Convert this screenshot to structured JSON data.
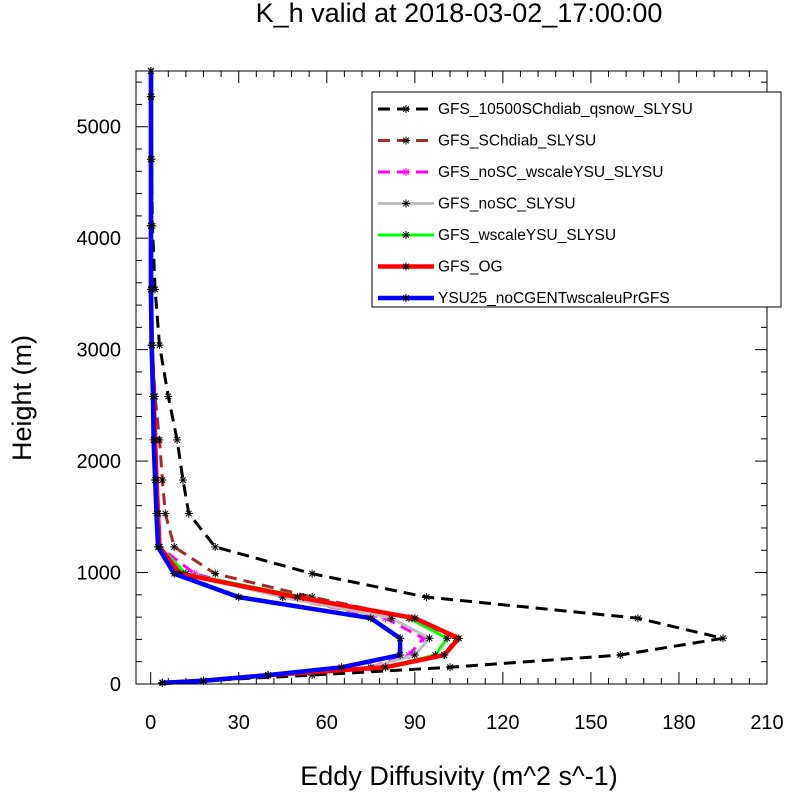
{
  "chart_data": {
    "type": "line",
    "title": "K_h valid at 2018-03-02_17:00:00",
    "xlabel": "Eddy Diffusivity (m^2 s^-1)",
    "ylabel": "Height (m)",
    "xlim": [
      -5,
      210
    ],
    "ylim": [
      0,
      5500
    ],
    "xticks": [
      0,
      30,
      60,
      90,
      120,
      150,
      180,
      210
    ],
    "yticks": [
      0,
      1000,
      2000,
      3000,
      4000,
      5000
    ],
    "xtick_labels": [
      "0",
      "30",
      "60",
      "90",
      "120",
      "150",
      "180",
      "210"
    ],
    "ytick_labels": [
      "0",
      "1000",
      "2000",
      "3000",
      "4000",
      "5000"
    ],
    "legend_position": "top-right",
    "series": [
      {
        "name": "GFS_10500SChdiab_qsnow_SLYSU",
        "color": "#000000",
        "dash": "dash",
        "width": 3,
        "x": [
          4,
          18,
          55,
          102,
          160,
          195,
          166,
          94,
          55,
          22,
          13,
          11,
          9,
          6,
          3,
          1.5,
          0.6,
          0.3,
          0.2,
          0.1
        ],
        "y": [
          10,
          30,
          80,
          150,
          260,
          410,
          590,
          780,
          990,
          1230,
          1530,
          1830,
          2190,
          2580,
          3040,
          3540,
          4110,
          4710,
          5270,
          5500
        ]
      },
      {
        "name": "GFS_SChdiab_SLYSU",
        "color": "#a52a2a",
        "dash": "dash",
        "width": 3,
        "x": [
          4,
          18,
          40,
          80,
          100,
          104,
          89,
          55,
          22,
          8,
          5,
          4,
          3,
          1.5,
          0.5,
          0.2,
          0.1,
          0.1,
          0.1,
          0.1
        ],
        "y": [
          10,
          30,
          80,
          150,
          260,
          410,
          590,
          780,
          990,
          1230,
          1530,
          1830,
          2190,
          2580,
          3040,
          3540,
          4110,
          4710,
          5270,
          5500
        ]
      },
      {
        "name": "GFS_noSC_wscaleYSU_SLYSU",
        "color": "#ff00ff",
        "dash": "dash",
        "width": 3,
        "x": [
          4,
          18,
          40,
          75,
          88,
          93,
          80,
          45,
          15,
          3,
          2.5,
          2,
          1.5,
          1,
          0.4,
          0.1,
          0.1,
          0.1,
          0.1,
          0.1
        ],
        "y": [
          10,
          30,
          80,
          150,
          260,
          410,
          590,
          780,
          990,
          1230,
          1530,
          1830,
          2190,
          2580,
          3040,
          3540,
          4110,
          4710,
          5270,
          5500
        ]
      },
      {
        "name": "GFS_noSC_SLYSU",
        "color": "#bebebe",
        "dash": "solid",
        "width": 3,
        "x": [
          4,
          18,
          40,
          75,
          90,
          95,
          82,
          45,
          12,
          3,
          2.5,
          2,
          1.5,
          1,
          0.4,
          0.1,
          0.1,
          0.1,
          0.1,
          0.1
        ],
        "y": [
          10,
          30,
          80,
          150,
          260,
          410,
          590,
          780,
          990,
          1230,
          1530,
          1830,
          2190,
          2580,
          3040,
          3540,
          4110,
          4710,
          5270,
          5500
        ]
      },
      {
        "name": "GFS_wscaleYSU_SLYSU",
        "color": "#00ff00",
        "dash": "solid",
        "width": 3,
        "x": [
          4,
          18,
          40,
          80,
          97,
          101,
          88,
          52,
          12,
          3,
          2.5,
          2,
          1.5,
          1,
          0.4,
          0.1,
          0.1,
          0.1,
          0.1,
          0.1
        ],
        "y": [
          10,
          30,
          80,
          150,
          260,
          410,
          590,
          780,
          990,
          1230,
          1530,
          1830,
          2190,
          2580,
          3040,
          3540,
          4110,
          4710,
          5270,
          5500
        ]
      },
      {
        "name": "GFS_OG",
        "color": "#ff0000",
        "dash": "solid",
        "width": 4.5,
        "x": [
          4,
          18,
          40,
          80,
          100,
          105,
          90,
          50,
          10,
          3,
          2.5,
          2,
          1.5,
          1,
          0.4,
          0.1,
          0.1,
          0.1,
          0.1,
          0.1
        ],
        "y": [
          10,
          30,
          80,
          150,
          260,
          410,
          590,
          780,
          990,
          1230,
          1530,
          1830,
          2190,
          2580,
          3040,
          3540,
          4110,
          4710,
          5270,
          5500
        ]
      },
      {
        "name": "YSU25_noCGENTwscaleuPrGFS",
        "color": "#0000ff",
        "dash": "solid",
        "width": 4.5,
        "x": [
          4,
          18,
          40,
          65,
          85,
          85,
          75,
          30,
          8,
          2.5,
          2,
          1.5,
          1,
          0.8,
          0.3,
          0.1,
          0.1,
          0.1,
          0.1,
          0.1
        ],
        "y": [
          10,
          30,
          80,
          150,
          260,
          410,
          590,
          780,
          990,
          1230,
          1530,
          1830,
          2190,
          2580,
          3040,
          3540,
          4110,
          4710,
          5270,
          5500
        ]
      }
    ]
  }
}
